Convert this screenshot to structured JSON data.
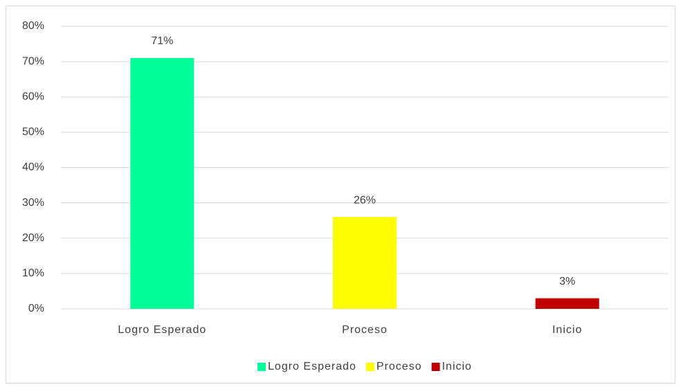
{
  "chart_data": {
    "type": "bar",
    "categories": [
      "Logro Esperado",
      "Proceso",
      "Inicio"
    ],
    "values": [
      71,
      26,
      3
    ],
    "value_labels": [
      "71%",
      "26%",
      "3%"
    ],
    "colors": [
      "#00ff99",
      "#ffff00",
      "#c00000"
    ],
    "ylim": [
      0,
      80
    ],
    "yticks": [
      {
        "value": 0,
        "label": "0%"
      },
      {
        "value": 10,
        "label": "10%"
      },
      {
        "value": 20,
        "label": "20%"
      },
      {
        "value": 30,
        "label": "30%"
      },
      {
        "value": 40,
        "label": "40%"
      },
      {
        "value": 50,
        "label": "50%"
      },
      {
        "value": 60,
        "label": "60%"
      },
      {
        "value": 70,
        "label": "70%"
      },
      {
        "value": 80,
        "label": "80%"
      }
    ],
    "grid": true,
    "legend": "bottom"
  }
}
